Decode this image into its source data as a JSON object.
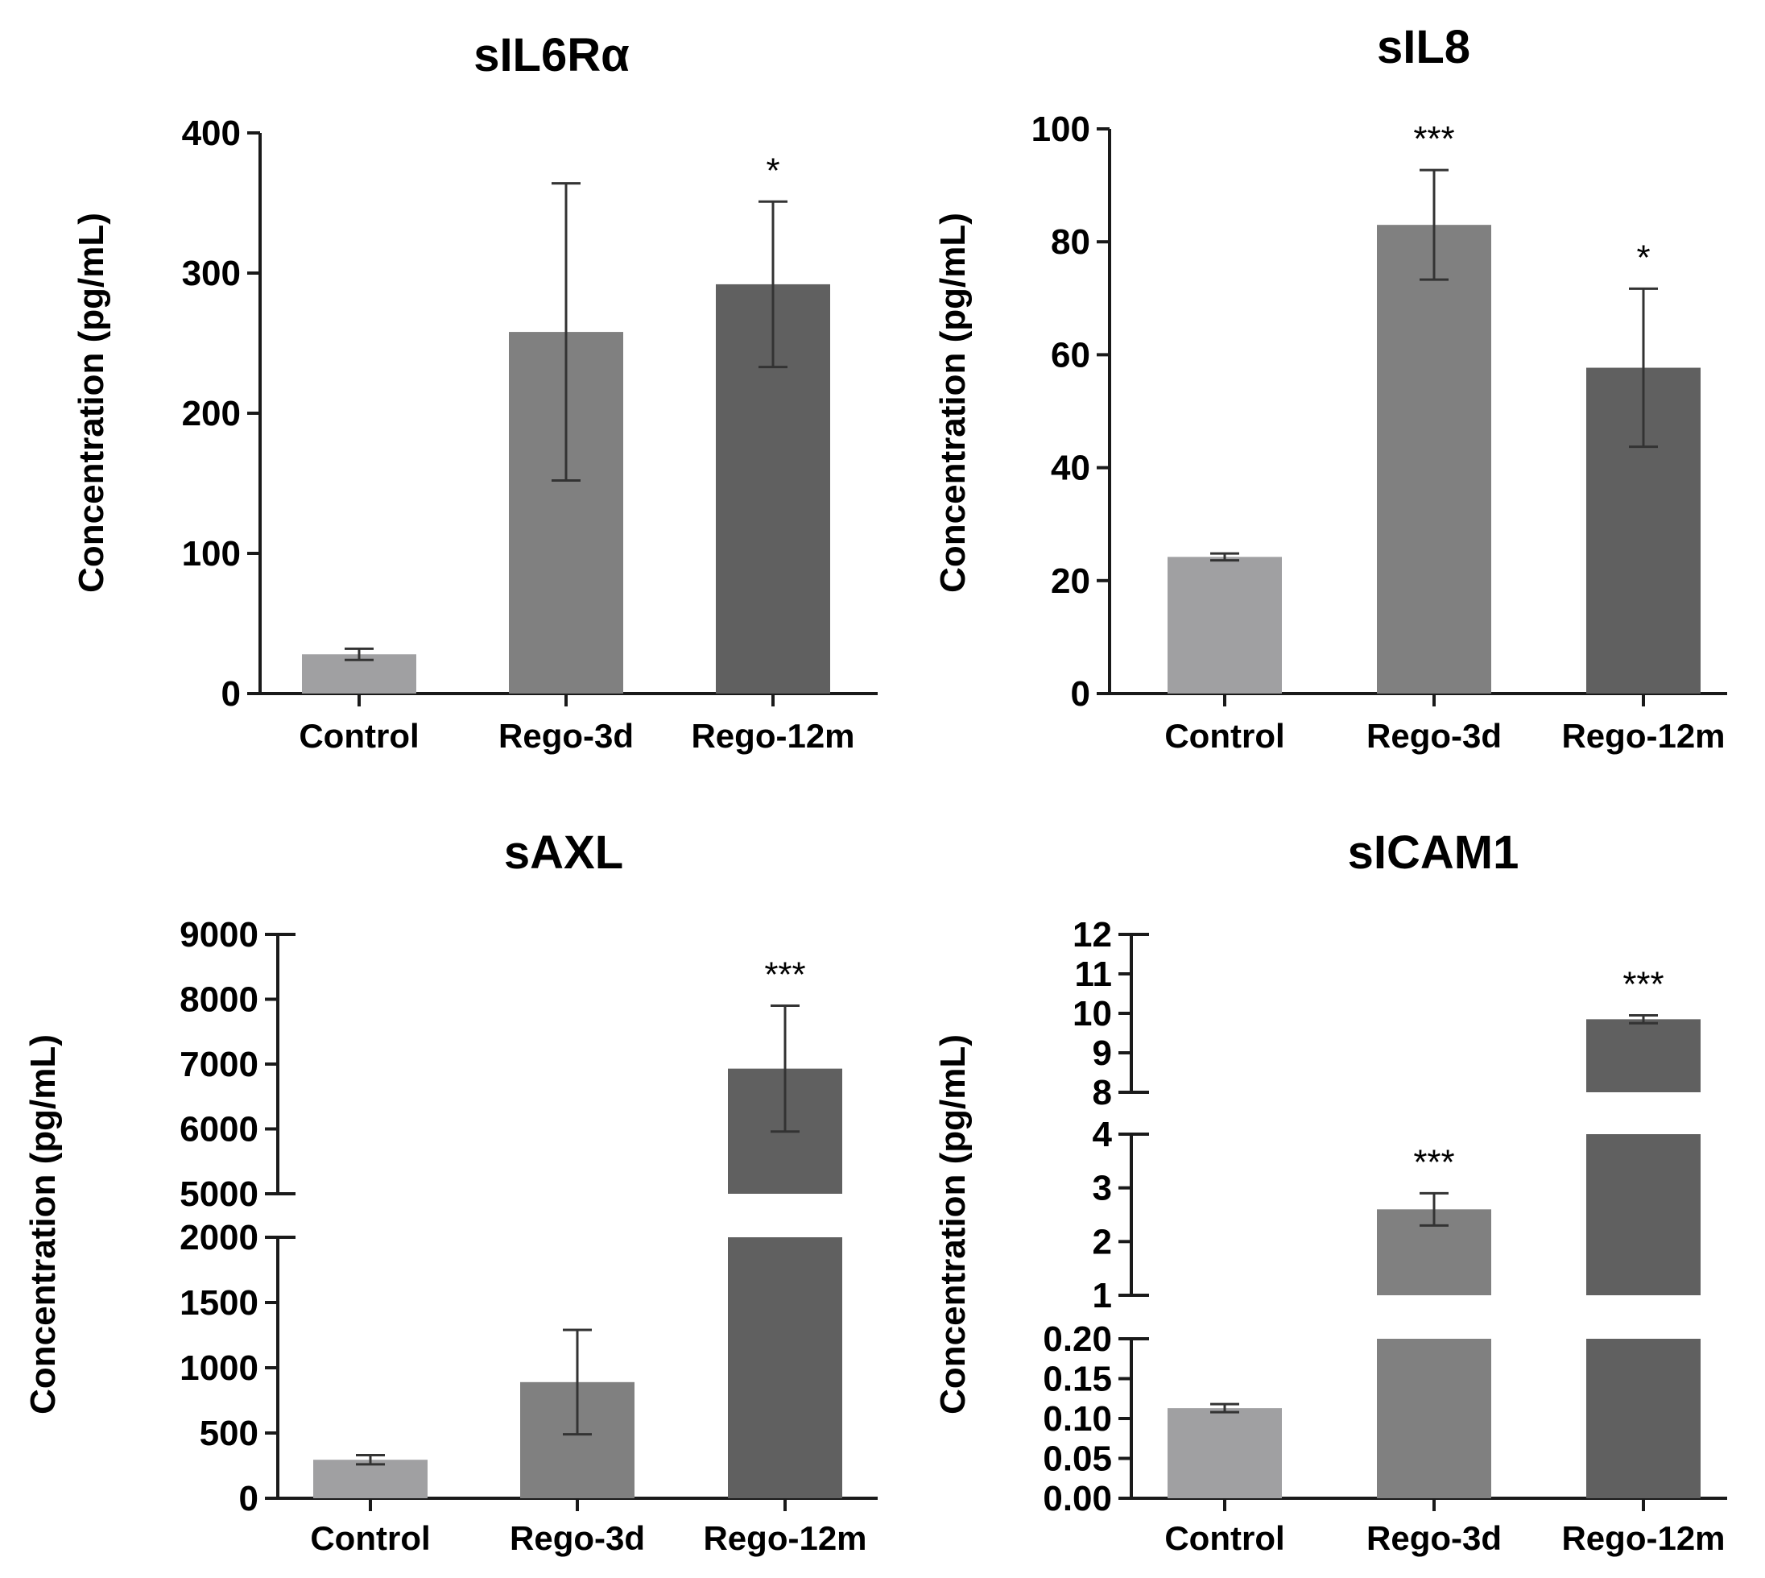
{
  "figure": {
    "ylabel": "Concentration (pg/mL)",
    "categories": [
      "Control",
      "Rego-3d",
      "Rego-12m"
    ],
    "colors": [
      "#a0a0a2",
      "#808080",
      "#606060"
    ]
  },
  "chart_data": [
    {
      "type": "bar",
      "title": "sIL6Rα",
      "ylabel": "Concentration (pg/mL)",
      "categories": [
        "Control",
        "Rego-3d",
        "Rego-12m"
      ],
      "values": [
        28,
        258,
        292
      ],
      "errors": [
        4,
        106,
        59
      ],
      "significance": [
        "",
        "",
        "*"
      ],
      "ylim": [
        0,
        400
      ],
      "ticks": [
        {
          "v": 0,
          "label": "0"
        },
        {
          "v": 100,
          "label": "100"
        },
        {
          "v": 200,
          "label": "200"
        },
        {
          "v": 300,
          "label": "300"
        },
        {
          "v": 400,
          "label": "400"
        }
      ]
    },
    {
      "type": "bar",
      "title": "sIL8",
      "ylabel": "Concentration (pg/mL)",
      "categories": [
        "Control",
        "Rego-3d",
        "Rego-12m"
      ],
      "values": [
        24.2,
        83,
        57.7
      ],
      "errors": [
        0.6,
        9.7,
        14
      ],
      "significance": [
        "",
        "***",
        "*"
      ],
      "ylim": [
        0,
        100
      ],
      "ticks": [
        {
          "v": 0,
          "label": "0"
        },
        {
          "v": 20,
          "label": "20"
        },
        {
          "v": 40,
          "label": "40"
        },
        {
          "v": 60,
          "label": "60"
        },
        {
          "v": 80,
          "label": "80"
        },
        {
          "v": 100,
          "label": "100"
        }
      ]
    },
    {
      "type": "bar",
      "title": "sAXL",
      "ylabel": "Concentration (pg/mL)",
      "categories": [
        "Control",
        "Rego-3d",
        "Rego-12m"
      ],
      "values": [
        295,
        890,
        6930
      ],
      "errors": [
        35,
        400,
        970
      ],
      "significance": [
        "",
        "",
        "***"
      ],
      "axis_breaks": [
        [
          2000,
          5000
        ]
      ],
      "ticks": [
        {
          "v": 0,
          "label": "0"
        },
        {
          "v": 500,
          "label": "500"
        },
        {
          "v": 1000,
          "label": "1000"
        },
        {
          "v": 1500,
          "label": "1500"
        },
        {
          "v": 2000,
          "label": "2000"
        },
        {
          "v": 5000,
          "label": "5000"
        },
        {
          "v": 6000,
          "label": "6000"
        },
        {
          "v": 7000,
          "label": "7000"
        },
        {
          "v": 8000,
          "label": "8000"
        },
        {
          "v": 9000,
          "label": "9000"
        }
      ]
    },
    {
      "type": "bar",
      "title": "sICAM1",
      "ylabel": "Concentration (pg/mL)",
      "categories": [
        "Control",
        "Rego-3d",
        "Rego-12m"
      ],
      "values": [
        0.113,
        2.6,
        9.85
      ],
      "errors": [
        0.005,
        0.3,
        0.1
      ],
      "significance": [
        "",
        "***",
        "***"
      ],
      "axis_breaks": [
        [
          0.2,
          1
        ],
        [
          4,
          8
        ]
      ],
      "ticks": [
        {
          "v": 0,
          "label": "0.00"
        },
        {
          "v": 0.05,
          "label": "0.05"
        },
        {
          "v": 0.1,
          "label": "0.10"
        },
        {
          "v": 0.15,
          "label": "0.15"
        },
        {
          "v": 0.2,
          "label": "0.20"
        },
        {
          "v": 1,
          "label": "1"
        },
        {
          "v": 2,
          "label": "2"
        },
        {
          "v": 3,
          "label": "3"
        },
        {
          "v": 4,
          "label": "4"
        },
        {
          "v": 8,
          "label": "8"
        },
        {
          "v": 9,
          "label": "9"
        },
        {
          "v": 10,
          "label": "10"
        },
        {
          "v": 11,
          "label": "11"
        },
        {
          "v": 12,
          "label": "12"
        }
      ]
    }
  ]
}
